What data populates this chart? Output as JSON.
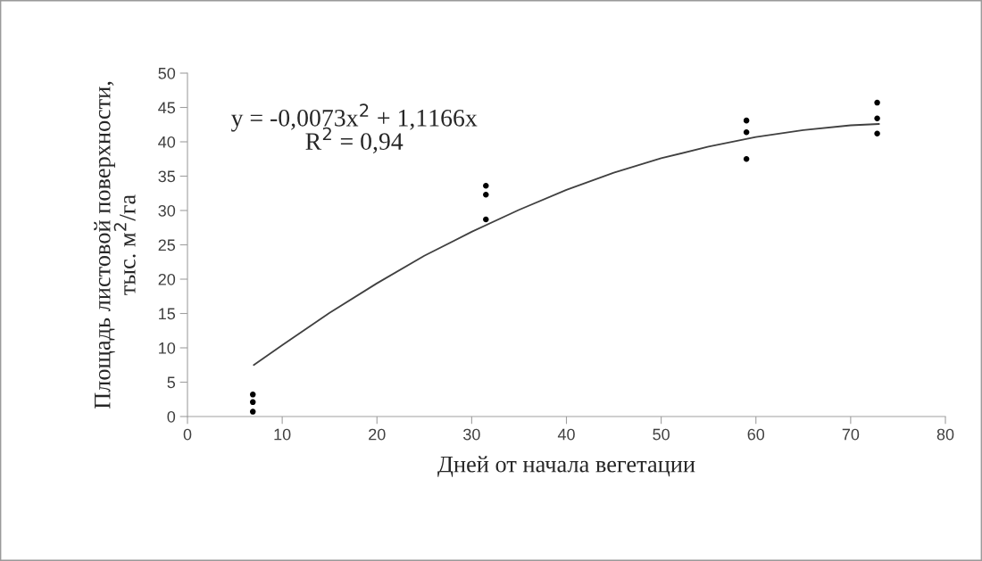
{
  "chart_data": {
    "type": "scatter",
    "xlabel": "Дней от начала вегетации",
    "ylabel": "Площадь листовой поверхности,\nтыс. м$^{2}$/га",
    "annotations": [
      "y = -0,0073x$^{2}$ + 1,1166x",
      "R$^{2}$ = 0,94"
    ],
    "xlim": [
      0,
      80
    ],
    "xticks": [
      0,
      10,
      20,
      30,
      40,
      50,
      60,
      70,
      80
    ],
    "ylim": [
      0,
      50
    ],
    "yticks": [
      0,
      5,
      10,
      15,
      20,
      25,
      30,
      35,
      40,
      45,
      50
    ],
    "grid": false,
    "legend": false,
    "marker": "circle",
    "series": [
      {
        "color": "#000000",
        "x": [
          6.9,
          6.9,
          6.9,
          31.5,
          31.5,
          31.5,
          59,
          59,
          59,
          72.8,
          72.8,
          72.8
        ],
        "values": [
          3.2,
          2.1,
          0.7,
          33.6,
          32.3,
          28.7,
          43.1,
          41.4,
          37.5,
          45.7,
          43.4,
          41.2
        ]
      },
      {
        "type": "line",
        "color": "#404040",
        "line_style": "solid",
        "marker": "none",
        "x": [
          7,
          10,
          15,
          20,
          25,
          30,
          35,
          40,
          45,
          50,
          55,
          60,
          65,
          70,
          73
        ],
        "values": [
          7.5,
          10.4,
          15.1,
          19.4,
          23.4,
          26.9,
          30.1,
          33.0,
          35.5,
          37.6,
          39.3,
          40.7,
          41.7,
          42.4,
          42.6
        ]
      }
    ]
  }
}
